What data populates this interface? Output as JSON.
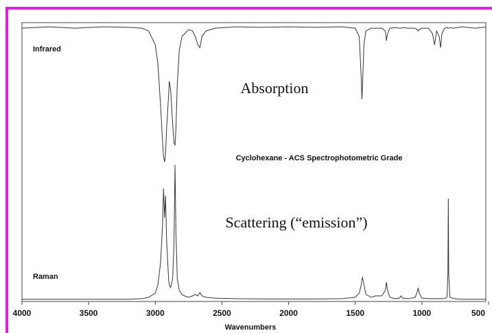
{
  "chart_data": {
    "type": "line",
    "title": "Cyclohexane - ACS Spectrophotometric Grade",
    "annotations": [
      "Absorption",
      "Scattering (“emission”)"
    ],
    "xlabel": "Wavenumbers",
    "x": [
      4000,
      3800,
      3600,
      3400,
      3200,
      3100,
      3050,
      3000,
      2980,
      2960,
      2945,
      2938,
      2930,
      2923,
      2915,
      2900,
      2895,
      2885,
      2870,
      2860,
      2852,
      2845,
      2835,
      2820,
      2800,
      2780,
      2750,
      2720,
      2700,
      2680,
      2665,
      2650,
      2620,
      2550,
      2400,
      2200,
      2000,
      1800,
      1600,
      1500,
      1470,
      1455,
      1450,
      1445,
      1435,
      1420,
      1380,
      1350,
      1300,
      1275,
      1266,
      1258,
      1240,
      1200,
      1170,
      1157,
      1145,
      1100,
      1050,
      1035,
      1028,
      1020,
      1000,
      950,
      920,
      905,
      890,
      870,
      860,
      850,
      830,
      812,
      805,
      802,
      799,
      790,
      760,
      700,
      600,
      500
    ],
    "series": [
      {
        "name": "Infrared",
        "color": "#333333",
        "values": [
          98,
          98.5,
          98,
          98.5,
          98.3,
          98,
          97,
          92,
          85,
          70,
          57,
          52,
          50,
          53,
          62,
          74,
          79,
          76,
          64,
          57,
          56,
          62,
          78,
          90,
          95,
          96,
          97.5,
          97,
          95,
          92,
          91,
          95,
          97,
          98,
          98.5,
          98.3,
          98.5,
          98.3,
          98.5,
          98,
          95,
          80,
          72.5,
          78,
          92,
          97,
          98,
          98,
          98,
          97,
          93.5,
          96,
          98,
          98.2,
          98,
          98,
          98.2,
          98,
          98,
          97.5,
          97,
          97.5,
          98,
          98,
          96,
          92,
          97,
          95,
          91,
          96,
          98,
          98.3,
          98,
          98,
          98,
          98.2,
          98,
          98.5,
          98,
          98.5
        ]
      },
      {
        "name": "Raman",
        "color": "#333333",
        "values": [
          0.8,
          0.8,
          0.8,
          0.8,
          0.8,
          1,
          1.5,
          3,
          6,
          14,
          28,
          40.5,
          30,
          38,
          22,
          8,
          6,
          5,
          8,
          20,
          49,
          25,
          8,
          4,
          2.5,
          2,
          1.5,
          2,
          2.5,
          2,
          3.2,
          2,
          1.5,
          1.2,
          1,
          0.9,
          0.9,
          0.9,
          1,
          1.5,
          3,
          6,
          8,
          8.6,
          6,
          2.5,
          1.5,
          2,
          2,
          4,
          6.9,
          4,
          1.5,
          1,
          1.2,
          2,
          1.2,
          1,
          1.5,
          3.5,
          4.9,
          3,
          1.2,
          1,
          1,
          1,
          1,
          1,
          1,
          1,
          1,
          1.5,
          10,
          36.9,
          10,
          1.5,
          1,
          0.8,
          0.8,
          0.8
        ]
      }
    ],
    "xlim": [
      4000,
      500
    ],
    "xticks": [
      4000,
      3500,
      3000,
      2500,
      2000,
      1500,
      1000,
      500
    ],
    "ylim": [
      0,
      100
    ]
  }
}
